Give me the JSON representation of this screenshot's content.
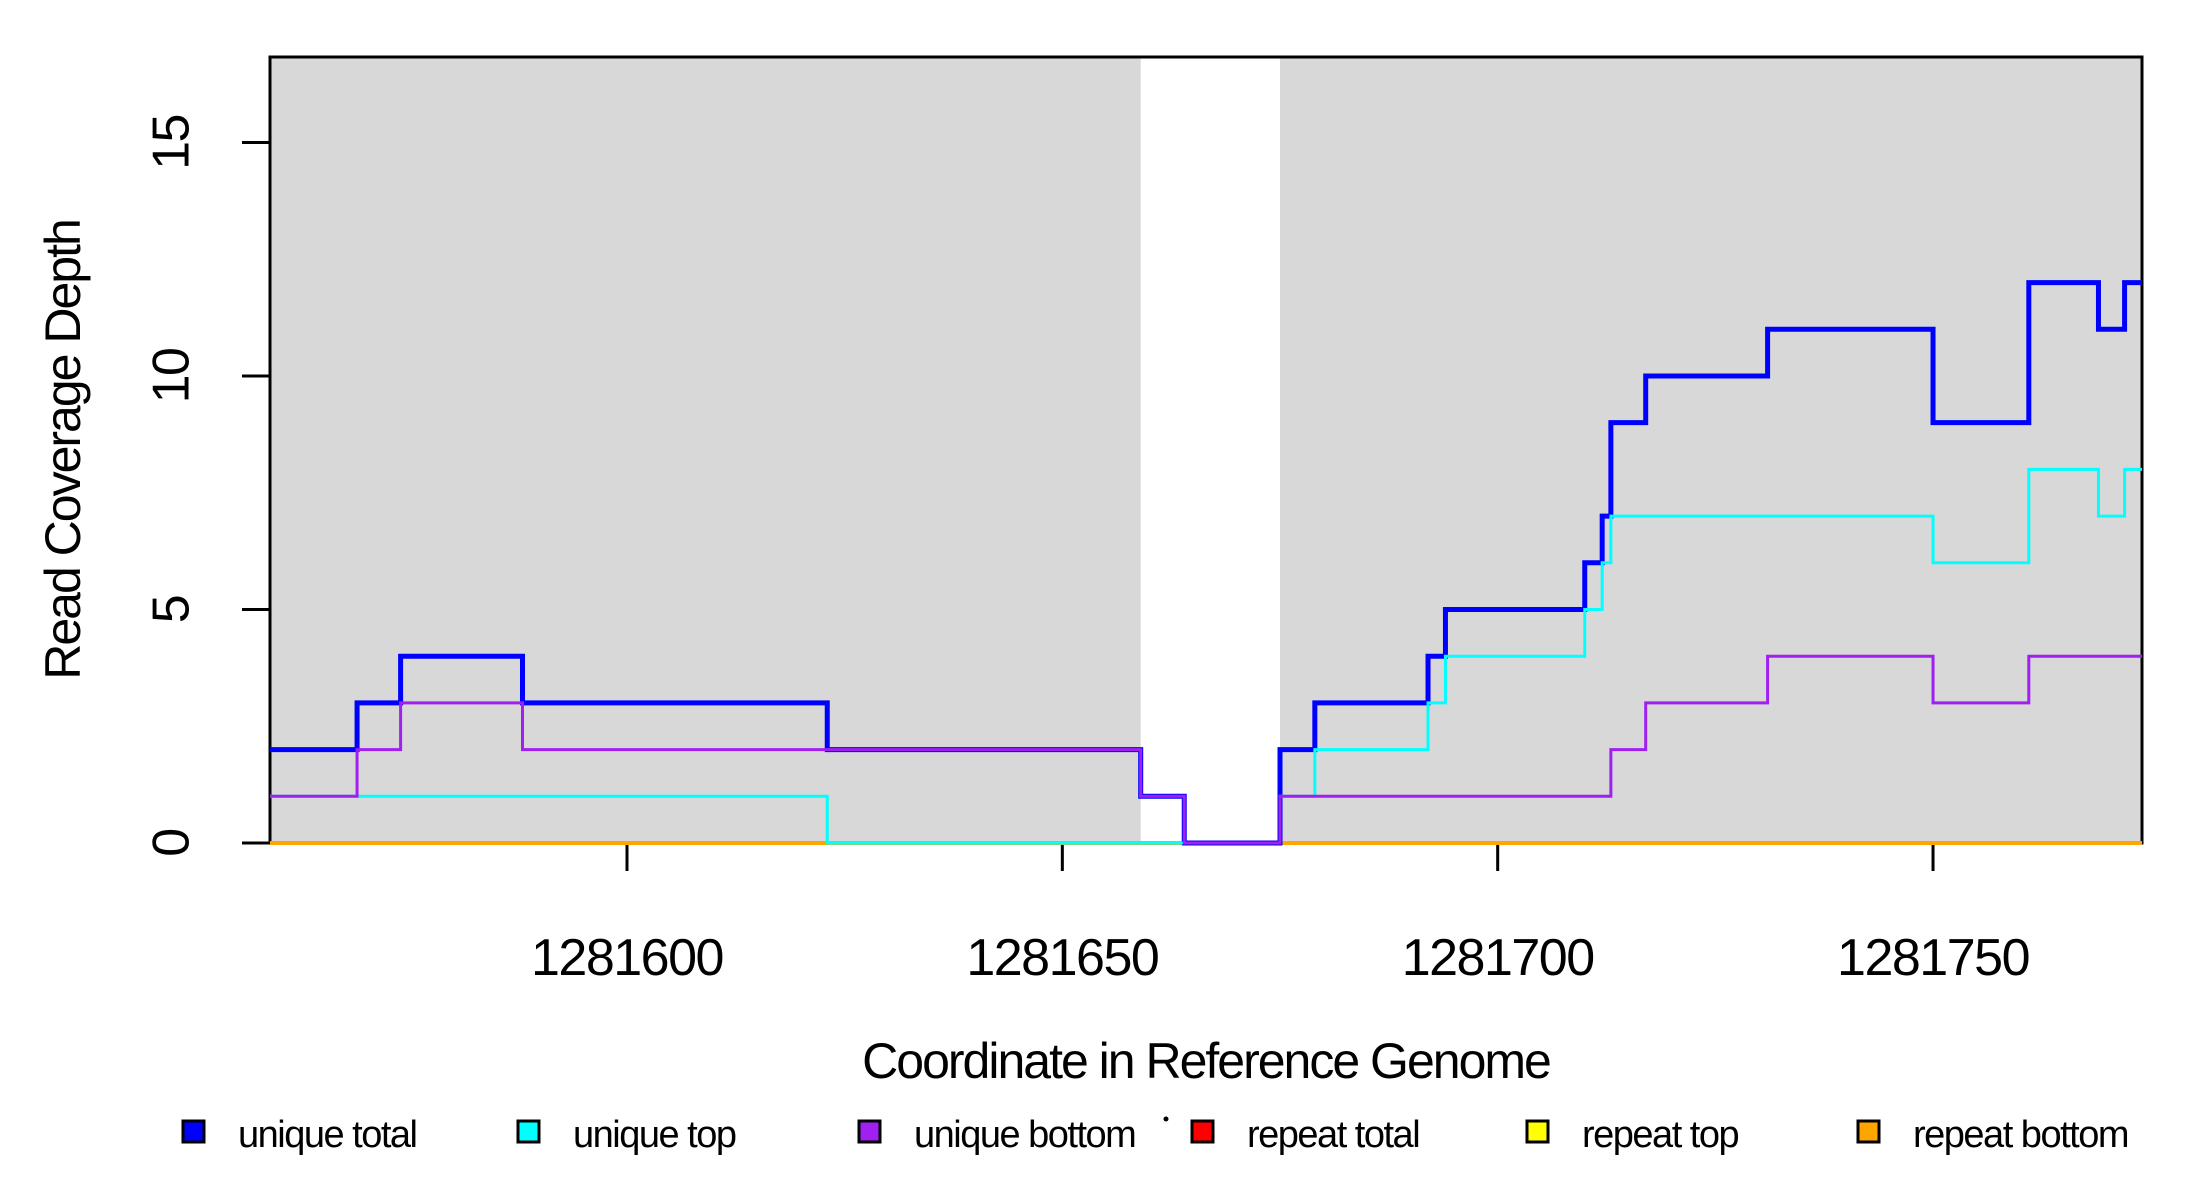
{
  "figure": {
    "background": "#FFFFFF",
    "shaded_band_color": "#D8D8D8",
    "frame_color": "#000000"
  },
  "chart_data": {
    "type": "line",
    "subtype": "step-coverage-plot",
    "title": "",
    "xlabel": "Coordinate in Reference Genome",
    "ylabel": "Read Coverage Depth",
    "xlim": [
      1281559,
      1281774
    ],
    "ylim": [
      0,
      16.83
    ],
    "grid": false,
    "legend_position": "bottom",
    "x_ticks": [
      1281600,
      1281650,
      1281700,
      1281750
    ],
    "x_tick_labels": [
      "1281600",
      "1281650",
      "1281700",
      "1281750"
    ],
    "y_ticks": [
      0,
      5,
      10,
      15
    ],
    "y_tick_labels": [
      "0",
      "5",
      "10",
      "15"
    ],
    "shaded_regions": [
      {
        "x0": 1281559,
        "x1": 1281659,
        "color": "#D8D8D8"
      },
      {
        "x0": 1281675,
        "x1": 1281774,
        "color": "#D8D8D8"
      }
    ],
    "draw_order": [
      "repeat total",
      "repeat top",
      "repeat bottom",
      "unique total",
      "unique top",
      "unique bottom"
    ],
    "series": [
      {
        "name": "unique total",
        "color": "#0000FF",
        "line_width": 5,
        "steps": [
          [
            1281559,
            2
          ],
          [
            1281569,
            3
          ],
          [
            1281574,
            4
          ],
          [
            1281588,
            3
          ],
          [
            1281623,
            2
          ],
          [
            1281659,
            1
          ],
          [
            1281664,
            0
          ],
          [
            1281675,
            2
          ],
          [
            1281679,
            3
          ],
          [
            1281692,
            4
          ],
          [
            1281694,
            5
          ],
          [
            1281710,
            6
          ],
          [
            1281712,
            7
          ],
          [
            1281713,
            9
          ],
          [
            1281717,
            10
          ],
          [
            1281731,
            11
          ],
          [
            1281750,
            9
          ],
          [
            1281761,
            12
          ],
          [
            1281769,
            11
          ],
          [
            1281772,
            12
          ]
        ]
      },
      {
        "name": "unique top",
        "color": "#00FFFF",
        "line_width": 3,
        "steps": [
          [
            1281559,
            1
          ],
          [
            1281623,
            0
          ],
          [
            1281675,
            1
          ],
          [
            1281679,
            2
          ],
          [
            1281692,
            3
          ],
          [
            1281694,
            4
          ],
          [
            1281710,
            5
          ],
          [
            1281712,
            6
          ],
          [
            1281713,
            7
          ],
          [
            1281750,
            6
          ],
          [
            1281761,
            8
          ],
          [
            1281769,
            7
          ],
          [
            1281772,
            8
          ]
        ]
      },
      {
        "name": "unique bottom",
        "color": "#A020F0",
        "line_width": 3,
        "steps": [
          [
            1281559,
            1
          ],
          [
            1281569,
            2
          ],
          [
            1281574,
            3
          ],
          [
            1281588,
            2
          ],
          [
            1281659,
            1
          ],
          [
            1281664,
            0
          ],
          [
            1281675,
            1
          ],
          [
            1281713,
            2
          ],
          [
            1281717,
            3
          ],
          [
            1281731,
            4
          ],
          [
            1281750,
            3
          ],
          [
            1281761,
            4
          ]
        ]
      },
      {
        "name": "repeat total",
        "color": "#FF0000",
        "line_width": 3,
        "steps": [
          [
            1281559,
            0
          ]
        ]
      },
      {
        "name": "repeat top",
        "color": "#FFFF00",
        "line_width": 3,
        "steps": [
          [
            1281559,
            0
          ]
        ]
      },
      {
        "name": "repeat bottom",
        "color": "#FFA500",
        "line_width": 4,
        "steps": [
          [
            1281559,
            0
          ]
        ]
      }
    ]
  },
  "legend": {
    "items": [
      {
        "label": "unique total",
        "color": "#0000FF"
      },
      {
        "label": "unique top",
        "color": "#00FFFF"
      },
      {
        "label": "unique bottom",
        "color": "#A020F0"
      },
      {
        "label": "repeat total",
        "color": "#FF0000"
      },
      {
        "label": "repeat top",
        "color": "#FFFF00"
      },
      {
        "label": "repeat bottom",
        "color": "#FFA500"
      }
    ]
  },
  "annotations": {
    "stray_dot": {
      "present": true
    }
  }
}
